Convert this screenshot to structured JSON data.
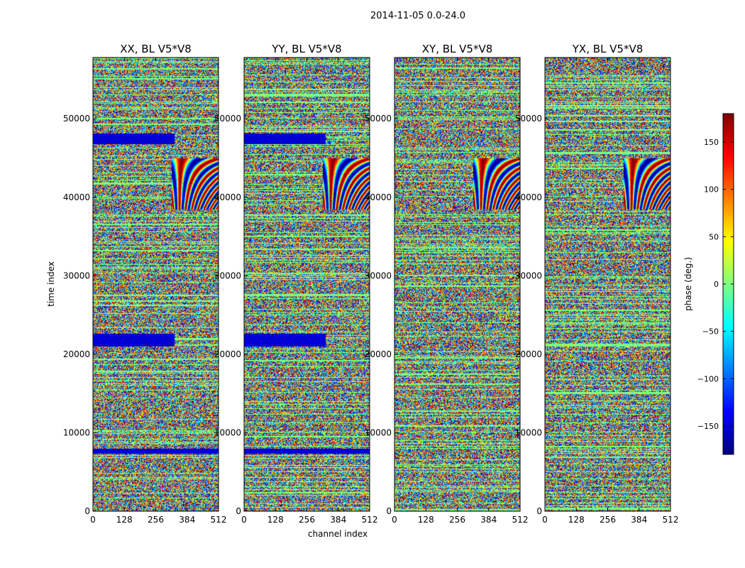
{
  "figure_title": "2014-11-05 0.0-24.0",
  "colorbar": {
    "label": "phase (deg.)",
    "range": [
      -180,
      180
    ],
    "ticks": [
      150,
      100,
      50,
      0,
      -50,
      -100,
      -150
    ],
    "tick_labels": [
      "150",
      "100",
      "50",
      "0",
      "−50",
      "−100",
      "−150"
    ],
    "colormap": "jet",
    "colors": [
      "#00007f",
      "#0000ff",
      "#007fff",
      "#00ffff",
      "#7fff7f",
      "#ffff00",
      "#ff7f00",
      "#ff0000",
      "#7f0000"
    ]
  },
  "chart_data": [
    {
      "type": "heatmap",
      "title": "XX, BL V5*V8",
      "xlabel": "",
      "ylabel": "time index",
      "xlim": [
        0,
        512
      ],
      "ylim": [
        0,
        57800
      ],
      "xticks": [
        0,
        128,
        256,
        384,
        512
      ],
      "yticks": [
        0,
        10000,
        20000,
        30000,
        40000,
        50000
      ],
      "value_range_deg": [
        -180,
        180
      ],
      "features": [
        {
          "band": "blue",
          "t_start": 7400,
          "t_end": 8000,
          "ch_start": 0,
          "ch_end": 512
        },
        {
          "band": "blue",
          "t_start": 21000,
          "t_end": 22700,
          "ch_start": 0,
          "ch_end": 330
        },
        {
          "band": "blue",
          "t_start": 46800,
          "t_end": 48200,
          "ch_start": 0,
          "ch_end": 330
        },
        {
          "fringes": "chirp",
          "t_start": 38500,
          "t_end": 45000,
          "ch_start": 320,
          "ch_end": 512
        }
      ]
    },
    {
      "type": "heatmap",
      "title": "YY, BL V5*V8",
      "xlabel": "channel index",
      "ylabel": "",
      "xlim": [
        0,
        512
      ],
      "ylim": [
        0,
        57800
      ],
      "xticks": [
        0,
        128,
        256,
        384,
        512
      ],
      "yticks": [
        0,
        10000,
        20000,
        30000,
        40000,
        50000
      ],
      "value_range_deg": [
        -180,
        180
      ],
      "features": [
        {
          "band": "blue",
          "t_start": 7400,
          "t_end": 8000,
          "ch_start": 0,
          "ch_end": 512
        },
        {
          "band": "blue",
          "t_start": 21000,
          "t_end": 22700,
          "ch_start": 0,
          "ch_end": 330
        },
        {
          "band": "blue",
          "t_start": 46800,
          "t_end": 48200,
          "ch_start": 0,
          "ch_end": 330
        },
        {
          "fringes": "chirp",
          "t_start": 38500,
          "t_end": 45000,
          "ch_start": 320,
          "ch_end": 512
        }
      ]
    },
    {
      "type": "heatmap",
      "title": "XY, BL V5*V8",
      "xlabel": "",
      "ylabel": "",
      "xlim": [
        0,
        512
      ],
      "ylim": [
        0,
        57800
      ],
      "xticks": [
        0,
        128,
        256,
        384,
        512
      ],
      "yticks": [
        0,
        10000,
        20000,
        30000,
        40000,
        50000
      ],
      "value_range_deg": [
        -180,
        180
      ],
      "features": [
        {
          "fringes": "chirp",
          "t_start": 38500,
          "t_end": 45000,
          "ch_start": 320,
          "ch_end": 512
        }
      ]
    },
    {
      "type": "heatmap",
      "title": "YX, BL V5*V8",
      "xlabel": "",
      "ylabel": "",
      "xlim": [
        0,
        512
      ],
      "ylim": [
        0,
        57800
      ],
      "xticks": [
        0,
        128,
        256,
        384,
        512
      ],
      "yticks": [
        0,
        10000,
        20000,
        30000,
        40000,
        50000
      ],
      "value_range_deg": [
        -180,
        180
      ],
      "features": [
        {
          "fringes": "chirp",
          "t_start": 38500,
          "t_end": 45000,
          "ch_start": 320,
          "ch_end": 512
        }
      ]
    }
  ]
}
